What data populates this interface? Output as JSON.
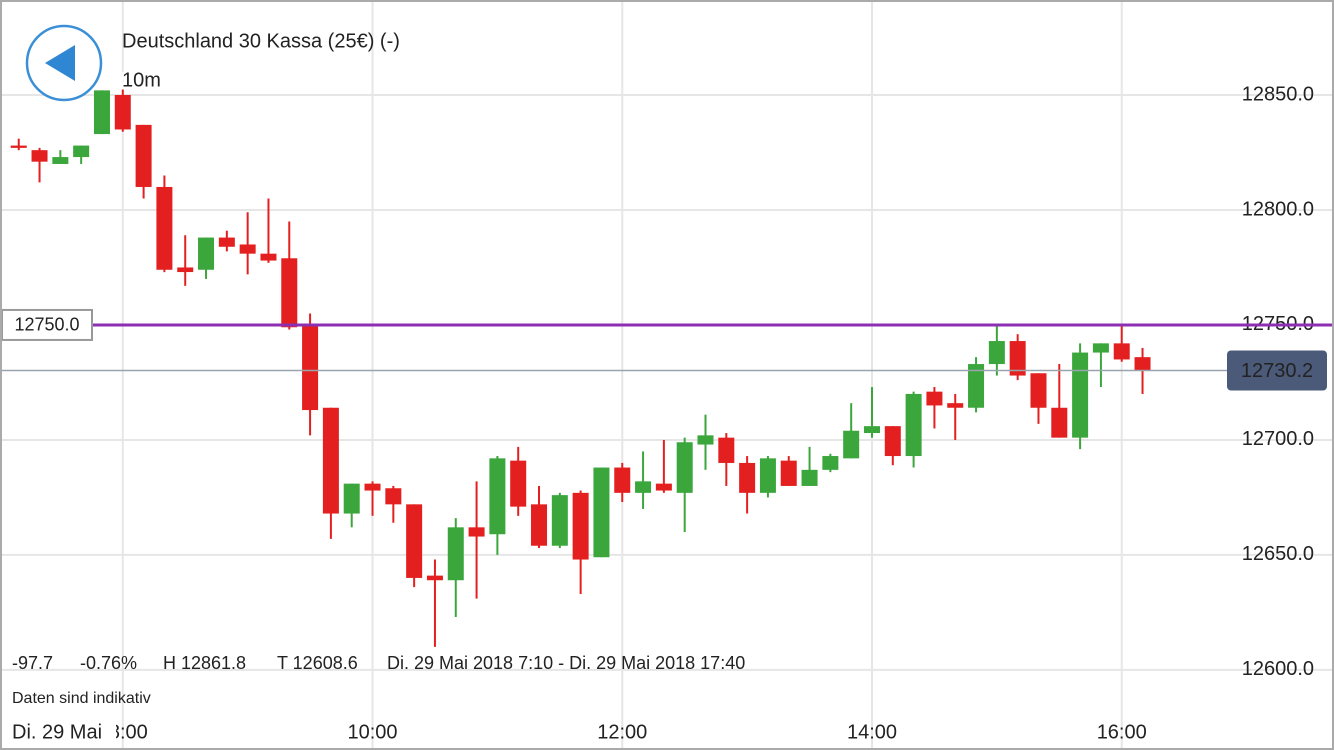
{
  "chart_data": {
    "type": "candlestick",
    "title": "Deutschland 30 Kassa (25€) (-)",
    "interval": "10m",
    "x": [
      "07:10",
      "07:20",
      "07:30",
      "07:40",
      "07:50",
      "08:00",
      "08:10",
      "08:20",
      "08:30",
      "08:40",
      "08:50",
      "09:00",
      "09:10",
      "09:20",
      "09:30",
      "09:40",
      "09:50",
      "10:00",
      "10:10",
      "10:20",
      "10:30",
      "10:40",
      "10:50",
      "11:00",
      "11:10",
      "11:20",
      "11:30",
      "11:40",
      "11:50",
      "12:00",
      "12:10",
      "12:20",
      "12:30",
      "12:40",
      "12:50",
      "13:00",
      "13:10",
      "13:20",
      "13:30",
      "13:40",
      "13:50",
      "14:00",
      "14:10",
      "14:20",
      "14:30",
      "14:40",
      "14:50",
      "15:00",
      "15:10",
      "15:20",
      "15:30",
      "15:40",
      "15:50",
      "16:00",
      "16:10"
    ],
    "open": [
      12828,
      12826,
      12820,
      12823,
      12833,
      12850,
      12837,
      12810,
      12775,
      12774,
      12788,
      12785,
      12781,
      12779,
      12750,
      12714,
      12668,
      12681,
      12679,
      12672,
      12641,
      12639,
      12662,
      12659,
      12691,
      12672,
      12654,
      12677,
      12649,
      12688,
      12677,
      12681,
      12677,
      12698,
      12701,
      12690,
      12677,
      12691,
      12680,
      12687,
      12692,
      12703,
      12706,
      12693,
      12721,
      12716,
      12714,
      12733,
      12743,
      12729,
      12714,
      12701,
      12738,
      12742,
      12736
    ],
    "high": [
      12831,
      12827,
      12826,
      12828,
      12852,
      12853,
      12837,
      12815,
      12789,
      12788,
      12791,
      12799,
      12805,
      12795,
      12755,
      12714,
      12681,
      12682,
      12680,
      12672,
      12648,
      12666,
      12682,
      12693,
      12697,
      12680,
      12677,
      12678,
      12688,
      12690,
      12695,
      12700,
      12701,
      12711,
      12703,
      12693,
      12693,
      12693,
      12697,
      12694,
      12716,
      12723,
      12706,
      12721,
      12723,
      12720,
      12736,
      12750,
      12746,
      12729,
      12733,
      12742,
      12742,
      12750,
      12740
    ],
    "low": [
      12826,
      12812,
      12820,
      12820,
      12833,
      12834,
      12805,
      12773,
      12767,
      12770,
      12782,
      12772,
      12777,
      12748,
      12702,
      12657,
      12662,
      12667,
      12664,
      12636,
      12610,
      12623,
      12631,
      12650,
      12667,
      12653,
      12653,
      12633,
      12649,
      12673,
      12670,
      12677,
      12660,
      12687,
      12680,
      12668,
      12675,
      12680,
      12680,
      12686,
      12692,
      12701,
      12689,
      12688,
      12705,
      12700,
      12712,
      12728,
      12726,
      12707,
      12701,
      12696,
      12723,
      12734,
      12720
    ],
    "close": [
      12827,
      12821,
      12823,
      12828,
      12852,
      12835,
      12810,
      12774,
      12773,
      12788,
      12784,
      12781,
      12778,
      12749,
      12713,
      12668,
      12681,
      12678,
      12672,
      12640,
      12639,
      12662,
      12658,
      12692,
      12671,
      12654,
      12676,
      12648,
      12688,
      12677,
      12682,
      12678,
      12699,
      12702,
      12690,
      12677,
      12692,
      12680,
      12687,
      12693,
      12704,
      12706,
      12693,
      12720,
      12715,
      12714,
      12733,
      12743,
      12728,
      12714,
      12701,
      12738,
      12742,
      12735,
      12730.2
    ],
    "up_color": "#3aa63c",
    "down_color": "#e3201f",
    "xlim": [
      "07:01",
      "17:42"
    ],
    "xticks": [
      "08:00",
      "10:00",
      "12:00",
      "14:00",
      "16:00"
    ],
    "ylim": [
      12580.4,
      12891.3
    ],
    "yticks": [
      {
        "value": 12600,
        "label": "12600.0"
      },
      {
        "value": 12650,
        "label": "12650.0"
      },
      {
        "value": 12700,
        "label": "12700.0"
      },
      {
        "value": 12750,
        "label": "12750.0"
      },
      {
        "value": 12800,
        "label": "12800.0"
      },
      {
        "value": 12850,
        "label": "12850.0"
      }
    ],
    "grid": true,
    "level_line": {
      "value": 12750,
      "label": "12750.0",
      "color": "#8d2fb3"
    },
    "current_price": {
      "value": 12730.2,
      "label": "12730.2",
      "color": "#4b5a78"
    },
    "stats": {
      "change": "-97.7",
      "change_pct": "-0.76%",
      "high": "H 12861.8",
      "low": "T 12608.6",
      "range": "Di. 29 Mai 2018 7:10 - Di. 29 Mai 2018 17:40"
    },
    "note": "Daten sind indikativ",
    "date_label": "Di. 29 Mai"
  }
}
